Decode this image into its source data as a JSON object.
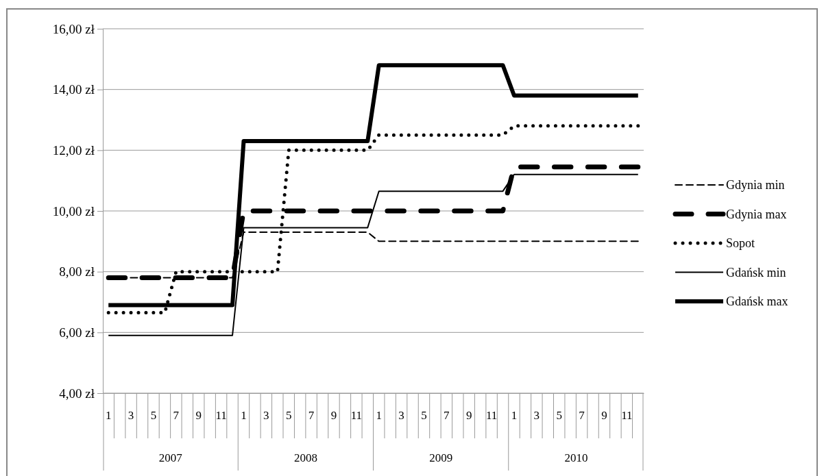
{
  "chart_data": {
    "type": "line",
    "categories": [
      "1",
      null,
      "3",
      null,
      "5",
      null,
      "7",
      null,
      "9",
      null,
      "11",
      null,
      "1",
      null,
      "3",
      null,
      "5",
      null,
      "7",
      null,
      "9",
      null,
      "11",
      null,
      "1",
      null,
      "3",
      null,
      "5",
      null,
      "7",
      null,
      "9",
      null,
      "11",
      null,
      "1",
      null,
      "3",
      null,
      "5",
      null,
      "7",
      null,
      "9",
      null,
      "11",
      null
    ],
    "annotations": [
      "2007",
      "2008",
      "2009",
      "2010"
    ],
    "ylim": [
      4,
      16
    ],
    "yticks": [
      {
        "value": 4,
        "label": "4,00 zł"
      },
      {
        "value": 6,
        "label": "6,00 zł"
      },
      {
        "value": 8,
        "label": "8,00 zł"
      },
      {
        "value": 10,
        "label": "10,00 zł"
      },
      {
        "value": 12,
        "label": "12,00 zł"
      },
      {
        "value": 14,
        "label": "14,00 zł"
      },
      {
        "value": 16,
        "label": "16,00 zł"
      }
    ],
    "grid": "y",
    "legend": "right",
    "marker": "none",
    "series": [
      {
        "name": "Gdynia min",
        "color": "#000000",
        "line_style": "dashed",
        "values": [
          7.8,
          7.8,
          7.8,
          7.8,
          7.8,
          7.8,
          7.8,
          7.8,
          7.8,
          7.8,
          7.8,
          7.8,
          9.3,
          9.3,
          9.3,
          9.3,
          9.3,
          9.3,
          9.3,
          9.3,
          9.3,
          9.3,
          9.3,
          9.3,
          9.0,
          9.0,
          9.0,
          9.0,
          9.0,
          9.0,
          9.0,
          9.0,
          9.0,
          9.0,
          9.0,
          9.0,
          9.0,
          9.0,
          9.0,
          9.0,
          9.0,
          9.0,
          9.0,
          9.0,
          9.0,
          9.0,
          9.0,
          9.0
        ]
      },
      {
        "name": "Gdynia max",
        "color": "#000000",
        "line_style": "dashed",
        "values": [
          7.8,
          7.8,
          7.8,
          7.8,
          7.8,
          7.8,
          7.8,
          7.8,
          7.8,
          7.8,
          7.8,
          7.8,
          10.0,
          10.0,
          10.0,
          10.0,
          10.0,
          10.0,
          10.0,
          10.0,
          10.0,
          10.0,
          10.0,
          10.0,
          10.0,
          10.0,
          10.0,
          10.0,
          10.0,
          10.0,
          10.0,
          10.0,
          10.0,
          10.0,
          10.0,
          10.0,
          11.45,
          11.45,
          11.45,
          11.45,
          11.45,
          11.45,
          11.45,
          11.45,
          11.45,
          11.45,
          11.45,
          11.45
        ]
      },
      {
        "name": "Sopot",
        "color": "#000000",
        "line_style": "dotted",
        "values": [
          6.65,
          6.65,
          6.65,
          6.65,
          6.65,
          6.65,
          8.0,
          8.0,
          8.0,
          8.0,
          8.0,
          8.0,
          8.0,
          8.0,
          8.0,
          8.0,
          12.0,
          12.0,
          12.0,
          12.0,
          12.0,
          12.0,
          12.0,
          12.0,
          12.5,
          12.5,
          12.5,
          12.5,
          12.5,
          12.5,
          12.5,
          12.5,
          12.5,
          12.5,
          12.5,
          12.5,
          12.8,
          12.8,
          12.8,
          12.8,
          12.8,
          12.8,
          12.8,
          12.8,
          12.8,
          12.8,
          12.8,
          12.8
        ]
      },
      {
        "name": "Gdańsk min",
        "color": "#000000",
        "line_style": "solid",
        "values": [
          5.9,
          5.9,
          5.9,
          5.9,
          5.9,
          5.9,
          5.9,
          5.9,
          5.9,
          5.9,
          5.9,
          5.9,
          9.45,
          9.45,
          9.45,
          9.45,
          9.45,
          9.45,
          9.45,
          9.45,
          9.45,
          9.45,
          9.45,
          9.45,
          10.65,
          10.65,
          10.65,
          10.65,
          10.65,
          10.65,
          10.65,
          10.65,
          10.65,
          10.65,
          10.65,
          10.65,
          11.2,
          11.2,
          11.2,
          11.2,
          11.2,
          11.2,
          11.2,
          11.2,
          11.2,
          11.2,
          11.2,
          11.2
        ]
      },
      {
        "name": "Gdańsk max",
        "color": "#000000",
        "line_style": "solid",
        "values": [
          6.9,
          6.9,
          6.9,
          6.9,
          6.9,
          6.9,
          6.9,
          6.9,
          6.9,
          6.9,
          6.9,
          6.9,
          12.3,
          12.3,
          12.3,
          12.3,
          12.3,
          12.3,
          12.3,
          12.3,
          12.3,
          12.3,
          12.3,
          12.3,
          14.8,
          14.8,
          14.8,
          14.8,
          14.8,
          14.8,
          14.8,
          14.8,
          14.8,
          14.8,
          14.8,
          14.8,
          13.8,
          13.8,
          13.8,
          13.8,
          13.8,
          13.8,
          13.8,
          13.8,
          13.8,
          13.8,
          13.8,
          13.8
        ]
      }
    ]
  }
}
